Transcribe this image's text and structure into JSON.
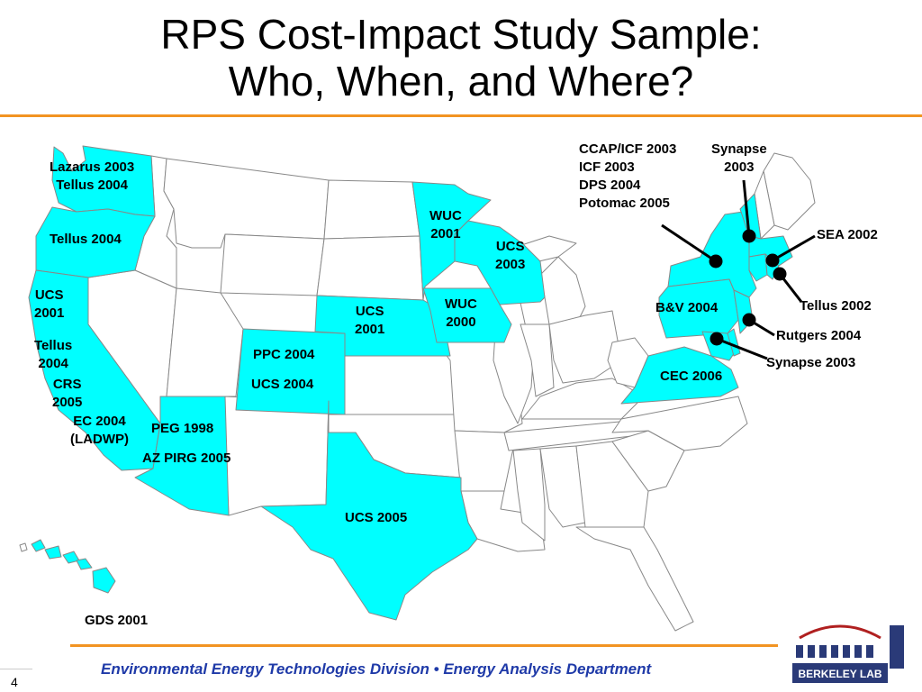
{
  "slide": {
    "title_line1": "RPS Cost-Impact Study Sample:",
    "title_line2": "Who, When, and Where?",
    "footer": "Environmental Energy Technologies Division  •  Energy Analysis Department",
    "slide_number": "4",
    "logo_text": "BERKELEY LAB"
  },
  "colors": {
    "highlight": "#00ffff",
    "accent_rule": "#f29422",
    "footer_text": "#1f3aa8",
    "state_border": "#888888"
  },
  "map": {
    "labels": {
      "lazarus": "Lazarus 2003",
      "tellus_wa": "Tellus 2004",
      "tellus_or": "Tellus 2004",
      "ucs_ca_1": "UCS",
      "ucs_ca_2": "2001",
      "tellus_ca_1": "Tellus",
      "tellus_ca_2": "2004",
      "crs_1": "CRS",
      "crs_2": "2005",
      "ec_1": "EC 2004",
      "ec_2": "(LADWP)",
      "peg": "PEG 1998",
      "azpirg": "AZ PIRG 2005",
      "ppc": "PPC 2004",
      "ucs_co": "UCS 2004",
      "ucs_ne_1": "UCS",
      "ucs_ne_2": "2001",
      "wuc_mn_1": "WUC",
      "wuc_mn_2": "2001",
      "ucs_wi_1": "UCS",
      "ucs_wi_2": "2003",
      "wuc_ia_1": "WUC",
      "wuc_ia_2": "2000",
      "ucs_tx": "UCS 2005",
      "gds": "GDS 2001",
      "ny_1": "CCAP/ICF 2003",
      "ny_2": "ICF 2003",
      "ny_3": "DPS 2004",
      "ny_4": "Potomac 2005",
      "synapse_vt_1": "Synapse",
      "synapse_vt_2": "2003",
      "sea": "SEA 2002",
      "tellus_ri": "Tellus 2002",
      "bv": "B&V 2004",
      "rutgers": "Rutgers 2004",
      "synapse_md": "Synapse 2003",
      "cec": "CEC 2006"
    }
  }
}
